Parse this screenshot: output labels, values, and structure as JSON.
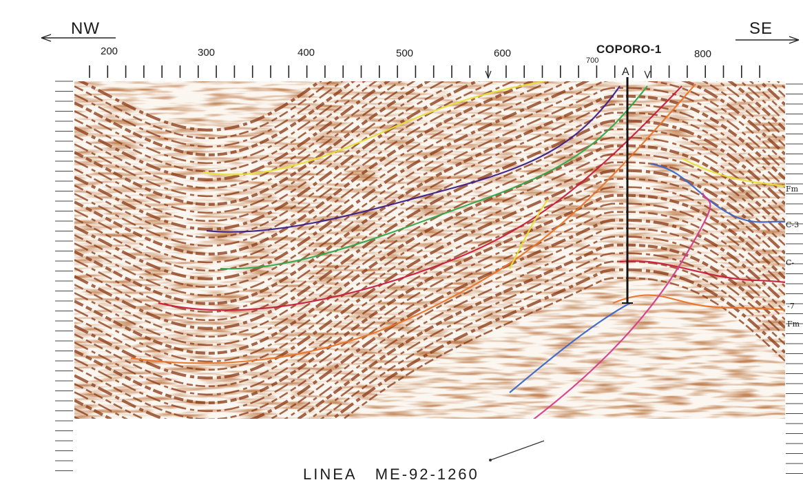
{
  "section": {
    "direction_left": "NW",
    "direction_right": "SE",
    "well_name": "COPORO-1",
    "well_marker": "A",
    "line_title": "LINEA   ME-92-1260",
    "shotpoint_labels": [
      "200",
      "300",
      "400",
      "500",
      "600",
      "700",
      "800"
    ],
    "horizon_labels": [
      "Fm",
      "C-3",
      "C-",
      "-7",
      "Fm"
    ]
  },
  "colors": {
    "background": "#fbf6ef",
    "reflector": "#8c3c18",
    "yellow_horizon": "#e6e036",
    "purple_horizon": "#3b1f8a",
    "green_horizon": "#2fa84a",
    "red_horizon": "#c81e3c",
    "orange_horizon": "#e8742a",
    "blue_fault": "#3b67c8",
    "magenta_fault": "#d43c8c"
  }
}
